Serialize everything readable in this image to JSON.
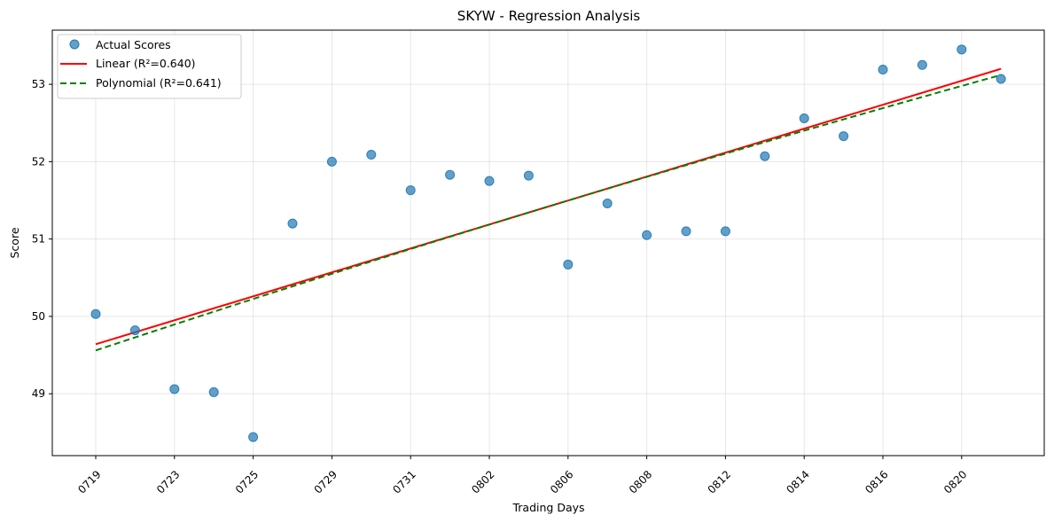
{
  "chart_data": {
    "type": "scatter",
    "title": "SKYW - Regression Analysis",
    "xlabel": "Trading Days",
    "ylabel": "Score",
    "grid": true,
    "legend_placement": "top-left",
    "x_tick_labels": [
      "0719",
      "0723",
      "0725",
      "0729",
      "0731",
      "0802",
      "0806",
      "0808",
      "0812",
      "0814",
      "0816",
      "0820"
    ],
    "y_ticks": [
      49,
      50,
      51,
      52,
      53
    ],
    "ylim": [
      48.2,
      53.7
    ],
    "series": [
      {
        "name": "Actual Scores",
        "kind": "scatter",
        "color": "#1f77b4",
        "values": [
          50.03,
          49.82,
          49.06,
          49.02,
          48.44,
          51.2,
          52.0,
          52.09,
          51.63,
          51.83,
          51.75,
          51.82,
          50.67,
          51.46,
          51.05,
          51.1,
          51.1,
          52.07,
          52.56,
          52.33,
          53.19,
          53.25,
          53.45,
          53.07
        ]
      },
      {
        "name": "Linear (R²=0.640)",
        "kind": "line",
        "color": "#ff0000",
        "start": 49.64,
        "end": 53.2
      },
      {
        "name": "Polynomial (R²=0.641)",
        "kind": "dashed-line",
        "color": "#008000",
        "start": 49.56,
        "mid": 51.42,
        "end": 53.12
      }
    ]
  }
}
